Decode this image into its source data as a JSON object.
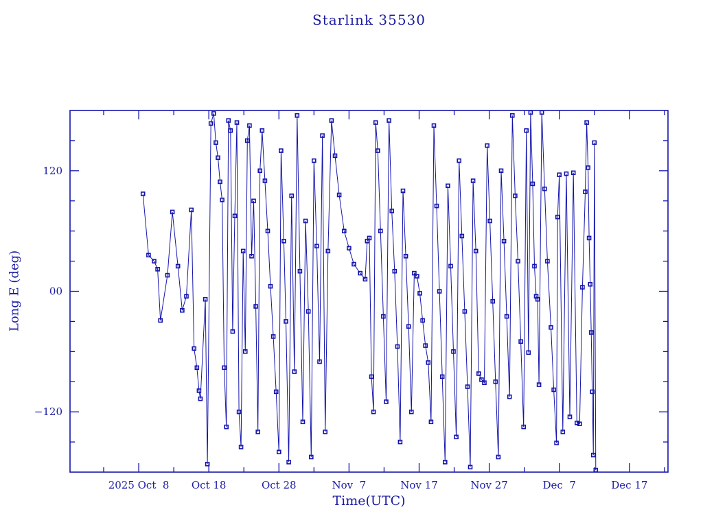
{
  "title": "Starlink 35530",
  "chart_data": {
    "type": "line",
    "title": "Starlink 35530",
    "xlabel": "Time(UTC)",
    "ylabel": "Long E (deg)",
    "x_unit": "days since 2025 Oct 8 00:00 UTC",
    "x_range_days": [
      -9.8,
      75.5
    ],
    "ylim": [
      -180,
      180
    ],
    "grid": false,
    "legend": "none",
    "line_color": "#1414ad",
    "marker_color": "#1414ad",
    "text_color": "#1b1ba5",
    "marker": "open-square",
    "x_major_ticks": [
      {
        "day": 0,
        "label": "2025 Oct  8"
      },
      {
        "day": 10,
        "label": "Oct 18"
      },
      {
        "day": 20,
        "label": "Oct 28"
      },
      {
        "day": 30,
        "label": "Nov  7"
      },
      {
        "day": 40,
        "label": "Nov 17"
      },
      {
        "day": 50,
        "label": "Nov 27"
      },
      {
        "day": 60,
        "label": "Dec  7"
      },
      {
        "day": 70,
        "label": "Dec 17"
      }
    ],
    "x_minor_tick_days": [
      -5,
      5,
      15,
      25,
      35,
      45,
      55,
      65,
      75
    ],
    "y_major_ticks": [
      {
        "value": 120,
        "label": "120"
      },
      {
        "value": 0,
        "label": "00"
      },
      {
        "value": -120,
        "label": "−120"
      }
    ],
    "y_minor_tick_values": [
      150,
      90,
      60,
      30,
      -30,
      -60,
      -90,
      -150
    ],
    "series": [
      {
        "name": "longitude_east_deg",
        "points": [
          [
            0.6,
            97
          ],
          [
            1.4,
            36
          ],
          [
            2.2,
            30
          ],
          [
            2.7,
            22
          ],
          [
            3.1,
            -29
          ],
          [
            4.1,
            16
          ],
          [
            4.8,
            79
          ],
          [
            5.6,
            25
          ],
          [
            6.2,
            -19
          ],
          [
            6.8,
            -5
          ],
          [
            7.5,
            81
          ],
          [
            7.9,
            -57
          ],
          [
            8.3,
            -76
          ],
          [
            8.6,
            -99
          ],
          [
            8.8,
            -107
          ],
          [
            9.5,
            -8
          ],
          [
            9.8,
            -172
          ],
          [
            10.3,
            167
          ],
          [
            10.7,
            177
          ],
          [
            11.0,
            148
          ],
          [
            11.3,
            133
          ],
          [
            11.6,
            109
          ],
          [
            11.9,
            91
          ],
          [
            12.2,
            -76
          ],
          [
            12.5,
            -135
          ],
          [
            12.8,
            170
          ],
          [
            13.1,
            160
          ],
          [
            13.4,
            -40
          ],
          [
            13.7,
            75
          ],
          [
            14.0,
            168
          ],
          [
            14.3,
            -120
          ],
          [
            14.6,
            -155
          ],
          [
            14.9,
            40
          ],
          [
            15.2,
            -60
          ],
          [
            15.5,
            150
          ],
          [
            15.8,
            165
          ],
          [
            16.1,
            35
          ],
          [
            16.4,
            90
          ],
          [
            16.7,
            -15
          ],
          [
            17.0,
            -140
          ],
          [
            17.3,
            120
          ],
          [
            17.6,
            160
          ],
          [
            18.0,
            110
          ],
          [
            18.4,
            60
          ],
          [
            18.8,
            5
          ],
          [
            19.2,
            -45
          ],
          [
            19.6,
            -100
          ],
          [
            20.0,
            -160
          ],
          [
            20.3,
            140
          ],
          [
            20.7,
            50
          ],
          [
            21.0,
            -30
          ],
          [
            21.4,
            -170
          ],
          [
            21.8,
            95
          ],
          [
            22.2,
            -80
          ],
          [
            22.6,
            175
          ],
          [
            23.0,
            20
          ],
          [
            23.4,
            -130
          ],
          [
            23.8,
            70
          ],
          [
            24.2,
            -20
          ],
          [
            24.6,
            -165
          ],
          [
            25.0,
            130
          ],
          [
            25.4,
            45
          ],
          [
            25.8,
            -70
          ],
          [
            26.2,
            155
          ],
          [
            26.6,
            -140
          ],
          [
            27.0,
            40
          ],
          [
            27.5,
            170
          ],
          [
            28.0,
            135
          ],
          [
            28.6,
            96
          ],
          [
            29.3,
            60
          ],
          [
            30.0,
            43
          ],
          [
            30.7,
            27
          ],
          [
            31.6,
            18
          ],
          [
            32.3,
            12
          ],
          [
            32.6,
            50
          ],
          [
            32.9,
            53
          ],
          [
            33.2,
            -85
          ],
          [
            33.5,
            -120
          ],
          [
            33.8,
            168
          ],
          [
            34.1,
            140
          ],
          [
            34.5,
            60
          ],
          [
            34.9,
            -25
          ],
          [
            35.3,
            -110
          ],
          [
            35.7,
            170
          ],
          [
            36.1,
            80
          ],
          [
            36.5,
            20
          ],
          [
            36.9,
            -55
          ],
          [
            37.3,
            -150
          ],
          [
            37.7,
            100
          ],
          [
            38.1,
            35
          ],
          [
            38.5,
            -35
          ],
          [
            38.9,
            -120
          ],
          [
            39.3,
            18
          ],
          [
            39.7,
            15
          ],
          [
            40.1,
            -2
          ],
          [
            40.5,
            -29
          ],
          [
            40.9,
            -54
          ],
          [
            41.3,
            -71
          ],
          [
            41.7,
            -130
          ],
          [
            42.1,
            165
          ],
          [
            42.5,
            85
          ],
          [
            42.9,
            0
          ],
          [
            43.3,
            -85
          ],
          [
            43.7,
            -170
          ],
          [
            44.1,
            105
          ],
          [
            44.5,
            25
          ],
          [
            44.9,
            -60
          ],
          [
            45.3,
            -145
          ],
          [
            45.7,
            130
          ],
          [
            46.1,
            55
          ],
          [
            46.5,
            -20
          ],
          [
            46.9,
            -95
          ],
          [
            47.3,
            -175
          ],
          [
            47.7,
            110
          ],
          [
            48.1,
            40
          ],
          [
            48.5,
            -82
          ],
          [
            48.9,
            -88
          ],
          [
            49.3,
            -91
          ],
          [
            49.7,
            145
          ],
          [
            50.1,
            70
          ],
          [
            50.5,
            -10
          ],
          [
            50.9,
            -90
          ],
          [
            51.3,
            -165
          ],
          [
            51.7,
            120
          ],
          [
            52.1,
            50
          ],
          [
            52.5,
            -25
          ],
          [
            52.9,
            -105
          ],
          [
            53.3,
            175
          ],
          [
            53.7,
            95
          ],
          [
            54.1,
            30
          ],
          [
            54.5,
            -50
          ],
          [
            54.9,
            -135
          ],
          [
            55.3,
            160
          ],
          [
            55.6,
            -61
          ],
          [
            55.9,
            178
          ],
          [
            56.2,
            107
          ],
          [
            56.45,
            25
          ],
          [
            56.7,
            -5
          ],
          [
            56.9,
            -8
          ],
          [
            57.1,
            -93
          ],
          [
            57.5,
            178
          ],
          [
            57.9,
            102
          ],
          [
            58.3,
            30
          ],
          [
            58.8,
            -36
          ],
          [
            59.2,
            -98
          ],
          [
            59.6,
            -151
          ],
          [
            59.75,
            74
          ],
          [
            60.0,
            116
          ],
          [
            60.5,
            -140
          ],
          [
            61.0,
            117
          ],
          [
            61.5,
            -125
          ],
          [
            62.0,
            118
          ],
          [
            62.5,
            -131
          ],
          [
            62.9,
            -132
          ],
          [
            63.3,
            4
          ],
          [
            63.7,
            99
          ],
          [
            63.9,
            168
          ],
          [
            64.1,
            123
          ],
          [
            64.25,
            53
          ],
          [
            64.4,
            7
          ],
          [
            64.55,
            -41
          ],
          [
            64.7,
            -100
          ],
          [
            64.85,
            -163
          ],
          [
            65.0,
            148
          ],
          [
            65.2,
            -178
          ]
        ]
      }
    ]
  }
}
